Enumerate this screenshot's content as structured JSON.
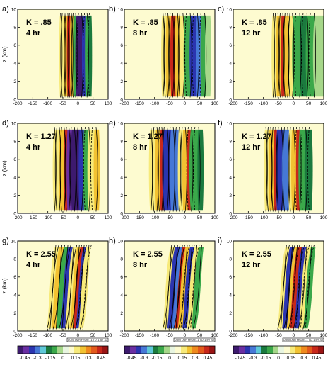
{
  "chart_data": {
    "type": "contour",
    "panels": [
      {
        "label": "a)",
        "k_label": "K = .85",
        "time_label": "4 hr"
      },
      {
        "label": "b)",
        "k_label": "K = .85",
        "time_label": "8 hr"
      },
      {
        "label": "c)",
        "k_label": "K = .85",
        "time_label": "12 hr"
      },
      {
        "label": "d)",
        "k_label": "K = 1.27",
        "time_label": "4 hr"
      },
      {
        "label": "e)",
        "k_label": "K = 1.27",
        "time_label": "8 hr"
      },
      {
        "label": "f)",
        "k_label": "K = 1.27",
        "time_label": "12 hr"
      },
      {
        "label": "g)",
        "k_label": "K = 2.55",
        "time_label": "4 hr"
      },
      {
        "label": "h)",
        "k_label": "K = 2.55",
        "time_label": "8 hr"
      },
      {
        "label": "i)",
        "k_label": "K = 2.55",
        "time_label": "12 hr"
      }
    ],
    "x_ticks": [
      "-200",
      "-150",
      "-100",
      "-50",
      "0",
      "50",
      "100"
    ],
    "x_range": [
      -200,
      100
    ],
    "y_ticks": [
      "0",
      "2",
      "4",
      "6",
      "8",
      "10"
    ],
    "y_range": [
      0,
      10
    ],
    "ylabel": "z (km)",
    "contour_info": "CONTOUR FROM -.1 TO .1 BY .02",
    "colorbar": {
      "tick_labels": [
        "-0.45",
        "-0.3",
        "-0.15",
        "0",
        "0.15",
        "0.3",
        "0.45"
      ],
      "colors": [
        "#3d1a6e",
        "#6a2fa3",
        "#2b35b0",
        "#4678d6",
        "#5fc8d8",
        "#1b7a3e",
        "#3ba84a",
        "#a6d78a",
        "#e8f5e0",
        "#fdfbd0",
        "#f7ea7a",
        "#f2c232",
        "#ef8a1e",
        "#e35a1c",
        "#c8281a",
        "#9a1414"
      ]
    }
  }
}
